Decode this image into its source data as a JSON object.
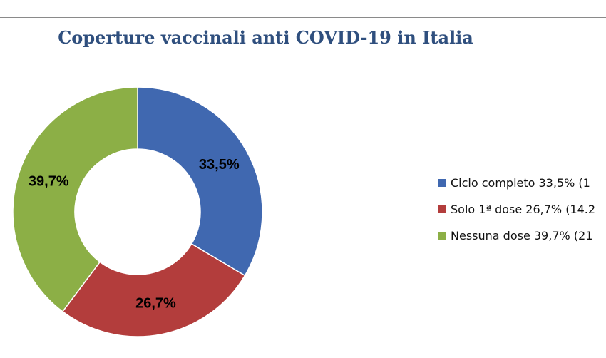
{
  "chart_data": {
    "type": "pie",
    "title": "Coperture vaccinali anti COVID-19 in Italia",
    "donut": true,
    "slices": [
      {
        "name": "Ciclo completo",
        "value": 33.5,
        "label": "33,5%",
        "legend": "Ciclo completo 33,5% (1",
        "color": "#4068b0"
      },
      {
        "name": "Solo 1ª dose",
        "value": 26.7,
        "label": "26,7%",
        "legend": "Solo 1ª dose 26,7% (14.2",
        "color": "#b33d3c"
      },
      {
        "name": "Nessuna dose",
        "value": 39.7,
        "label": "39,7%",
        "legend": "Nessuna dose 39,7% (21",
        "color": "#8caf46"
      }
    ],
    "legend_position": "right"
  }
}
